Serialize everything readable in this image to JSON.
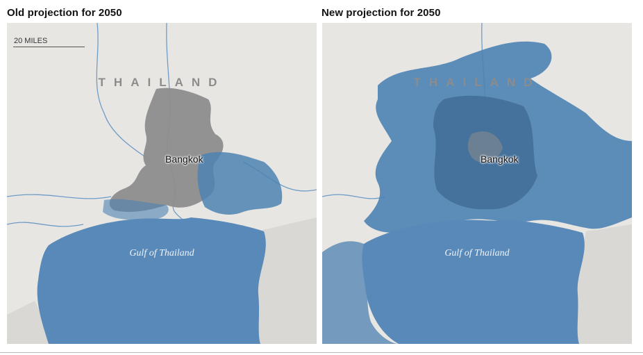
{
  "panels": [
    {
      "title": "Old projection for 2050",
      "country_label": "THAILAND",
      "city_label": "Bangkok",
      "water_label": "Gulf of Thailand"
    },
    {
      "title": "New projection for 2050",
      "country_label": "THAILAND",
      "city_label": "Bangkok",
      "water_label": "Gulf of Thailand"
    }
  ],
  "scale_bar": {
    "label": "20 MILES"
  },
  "colors": {
    "land": "#e7e6e3",
    "urban": "#8d8d8d",
    "flood": "#4d82b2",
    "sea": "#5889b9",
    "river": "#6f9cc6"
  }
}
